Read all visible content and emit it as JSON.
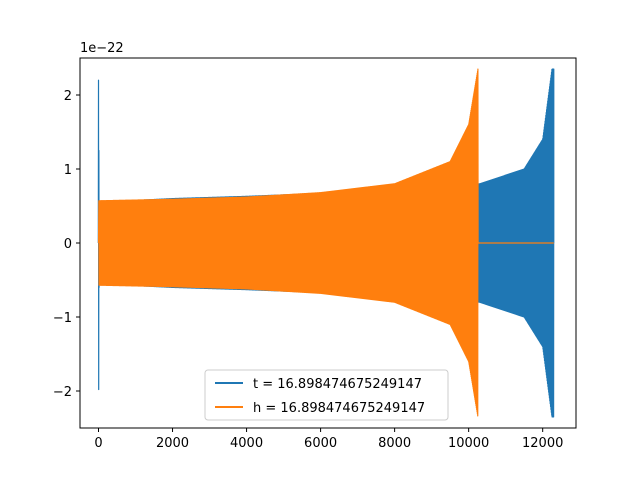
{
  "chart_data": {
    "type": "line",
    "title": "",
    "xlabel": "",
    "ylabel": "",
    "offset_text": "1e−22",
    "xlim": [
      -500,
      12900
    ],
    "ylim": [
      -2.5,
      2.5
    ],
    "y_scale_exponent": -22,
    "x_ticks": [
      0,
      2000,
      4000,
      6000,
      8000,
      10000,
      12000
    ],
    "x_tick_labels": [
      "0",
      "2000",
      "4000",
      "6000",
      "8000",
      "10000",
      "12000"
    ],
    "y_ticks": [
      -2,
      -1,
      0,
      1,
      2
    ],
    "y_tick_labels": [
      "−2",
      "−1",
      "0",
      "1",
      "2"
    ],
    "grid": false,
    "legend_position": "lower center",
    "series": [
      {
        "name": "t = 16.898474675249147",
        "color": "#1f77b4",
        "description": "oscillating signal: initial spike near x=0, envelope growing from ~0.55 to ~0.8 by x=10300, then chirp growing to ~2.35 at x=12300",
        "envelope_points": [
          [
            0,
            0.55
          ],
          [
            2000,
            0.6
          ],
          [
            4000,
            0.63
          ],
          [
            6000,
            0.67
          ],
          [
            8000,
            0.72
          ],
          [
            10000,
            0.78
          ],
          [
            10300,
            0.8
          ],
          [
            11500,
            1.0
          ],
          [
            12000,
            1.4
          ],
          [
            12250,
            2.35
          ]
        ],
        "spike": {
          "x": 0,
          "max": 2.2,
          "min": -1.98
        },
        "x_end": 12300
      },
      {
        "name": "h = 16.898474675249147",
        "color": "#ff7f0e",
        "description": "oscillating chirp signal with envelope growing from ~0.57 to ~2.35 at x=10250, then flat at 0 until x=12300",
        "envelope_points": [
          [
            0,
            0.57
          ],
          [
            2000,
            0.59
          ],
          [
            4000,
            0.62
          ],
          [
            6000,
            0.68
          ],
          [
            8000,
            0.8
          ],
          [
            9500,
            1.1
          ],
          [
            10000,
            1.6
          ],
          [
            10250,
            2.35
          ]
        ],
        "x_end_oscillation": 10250,
        "x_end": 12300
      }
    ]
  }
}
